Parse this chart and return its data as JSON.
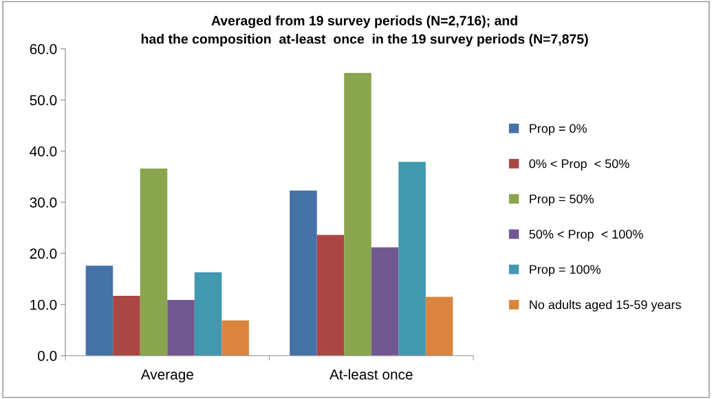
{
  "chart_data": {
    "type": "bar",
    "title": "Averaged from 19 survey periods (N=2,716); and\nhad the composition  at-least  once  in the 19 survey periods (N=7,875)",
    "categories": [
      "Average",
      "At-least once"
    ],
    "series": [
      {
        "name": "Prop = 0%",
        "color": "#4572a7",
        "values": [
          17.6,
          32.3
        ]
      },
      {
        "name": "0% < Prop  < 50%",
        "color": "#aa4643",
        "values": [
          11.7,
          23.6
        ]
      },
      {
        "name": "Prop = 50%",
        "color": "#89a54e",
        "values": [
          36.6,
          55.3
        ]
      },
      {
        "name": "50% < Prop  < 100%",
        "color": "#71588f",
        "values": [
          10.9,
          21.2
        ]
      },
      {
        "name": "Prop = 100%",
        "color": "#4198af",
        "values": [
          16.3,
          37.9
        ]
      },
      {
        "name": "No adults aged 15-59 years",
        "color": "#db843d",
        "values": [
          6.9,
          11.5
        ]
      }
    ],
    "ylim": [
      0,
      60
    ],
    "yticks": [
      {
        "value": 0,
        "label": "0.0"
      },
      {
        "value": 10,
        "label": "10.0"
      },
      {
        "value": 20,
        "label": "20.0"
      },
      {
        "value": 30,
        "label": "30.0"
      },
      {
        "value": 40,
        "label": "40.0"
      },
      {
        "value": 50,
        "label": "50.0"
      },
      {
        "value": 60,
        "label": "60.0"
      }
    ],
    "grid": false,
    "legend": "right"
  }
}
